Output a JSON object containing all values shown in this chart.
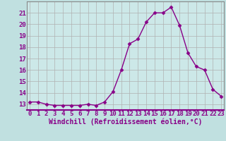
{
  "x": [
    0,
    1,
    2,
    3,
    4,
    5,
    6,
    7,
    8,
    9,
    10,
    11,
    12,
    13,
    14,
    15,
    16,
    17,
    18,
    19,
    20,
    21,
    22,
    23
  ],
  "y": [
    13.2,
    13.2,
    13.0,
    12.9,
    12.9,
    12.9,
    12.9,
    13.0,
    12.9,
    13.2,
    14.1,
    16.0,
    18.3,
    18.7,
    20.2,
    21.0,
    21.0,
    21.5,
    19.9,
    17.5,
    16.3,
    16.0,
    14.3,
    13.7
  ],
  "line_color": "#880088",
  "marker": "D",
  "marker_size": 2.5,
  "linewidth": 1.0,
  "xlabel": "Windchill (Refroidissement éolien,°C)",
  "ylabel_ticks": [
    13,
    14,
    15,
    16,
    17,
    18,
    19,
    20,
    21
  ],
  "xticks": [
    0,
    1,
    2,
    3,
    4,
    5,
    6,
    7,
    8,
    9,
    10,
    11,
    12,
    13,
    14,
    15,
    16,
    17,
    18,
    19,
    20,
    21,
    22,
    23
  ],
  "ylim": [
    12.5,
    22.0
  ],
  "xlim": [
    -0.3,
    23.3
  ],
  "bg_color": "#c0e0e0",
  "plot_bg": "#cceeff",
  "grid_color": "#b0b0b0",
  "font_color": "#880088",
  "font_size": 6.5,
  "label_font_size": 7.0
}
